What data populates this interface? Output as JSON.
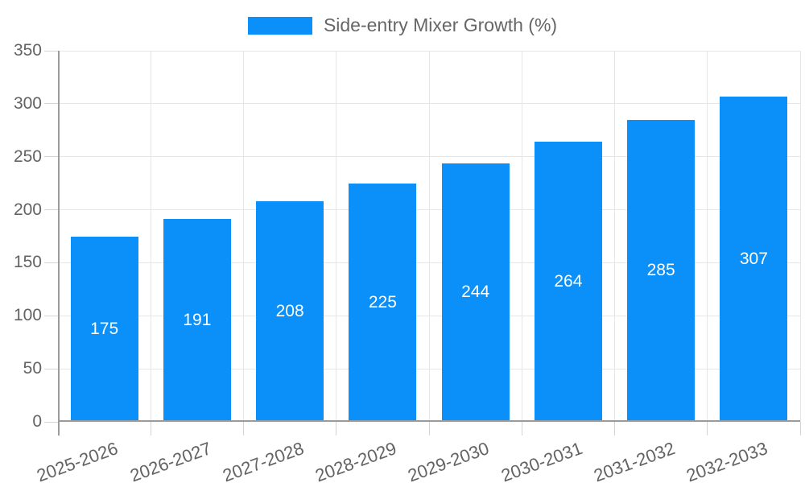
{
  "legend": {
    "label": "Side-entry Mixer Growth (%)"
  },
  "chart_data": {
    "type": "bar",
    "title": "Side-entry Mixer Growth (%)",
    "categories": [
      "2025-2026",
      "2026-2027",
      "2027-2028",
      "2028-2029",
      "2029-2030",
      "2030-2031",
      "2031-2032",
      "2032-2033"
    ],
    "values": [
      175,
      191,
      208,
      225,
      244,
      264,
      285,
      307
    ],
    "xlabel": "",
    "ylabel": "",
    "ylim": [
      0,
      350
    ],
    "yticks": [
      0,
      50,
      100,
      150,
      200,
      250,
      300,
      350
    ],
    "grid": true,
    "legend_position": "top",
    "value_labels": "inside-center",
    "x_label_rotation_deg": -20
  },
  "colors": {
    "bar": "#0b90f9",
    "axis": "#9b9b9b",
    "grid": "#e6e6e6",
    "tick": "#d4d4d4",
    "axis_text": "#636363",
    "legend_text": "#666666",
    "value_label_text": "#ffffff"
  }
}
